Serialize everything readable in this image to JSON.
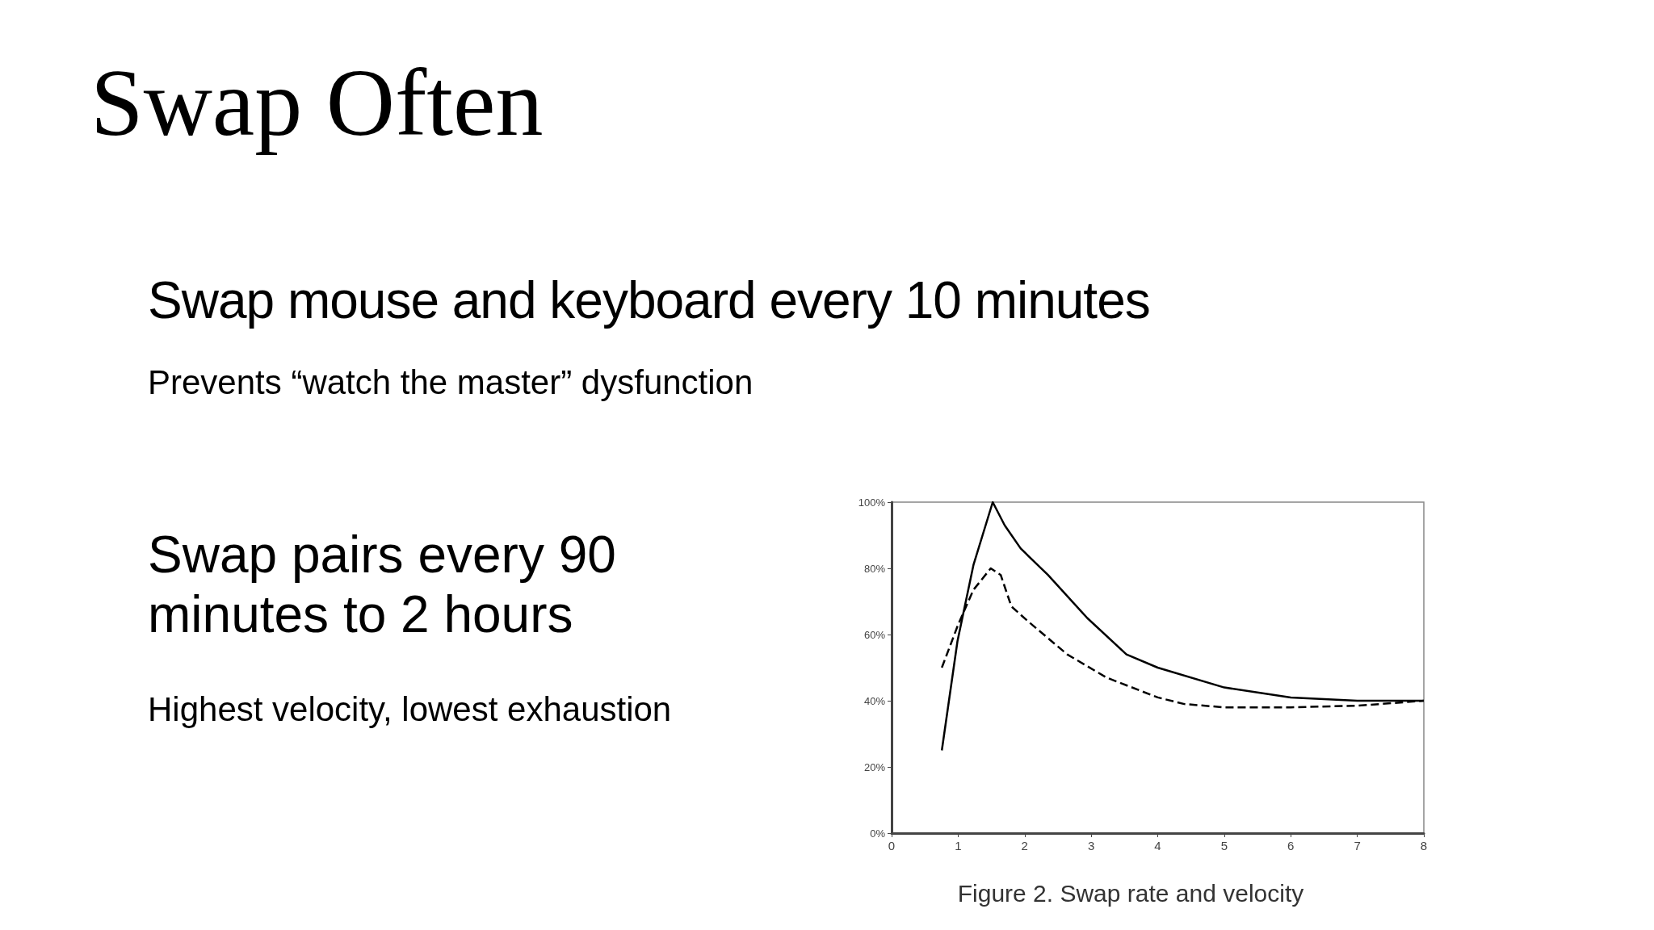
{
  "chart_data": {
    "type": "line",
    "title": "Swap Often",
    "annotations": [
      "Swap mouse and keyboard every 10 minutes",
      "Prevents “watch the master” dysfunction",
      "Swap pairs every 90 minutes to 2 hours",
      "Highest velocity, lowest exhaustion",
      "Figure 2. Swap rate and velocity"
    ],
    "series": [
      {
        "color": "#000000",
        "line_style": "solid",
        "x": [
          0.755,
          0.99,
          1.23,
          1.52,
          1.7,
          1.94,
          2.35,
          2.94,
          3.53,
          4.0,
          5.0,
          6.0,
          7.0,
          8.0
        ],
        "values": [
          25,
          58,
          81,
          100,
          93,
          86,
          78,
          65,
          54,
          50,
          44,
          41,
          40,
          40
        ]
      },
      {
        "color": "#000000",
        "line_style": "dashed",
        "x": [
          0.755,
          1.0,
          1.23,
          1.49,
          1.64,
          1.8,
          2.05,
          2.64,
          3.23,
          4.0,
          4.4,
          5.0,
          6.0,
          7.0,
          8.0
        ],
        "values": [
          50,
          63,
          73.5,
          80,
          78,
          68.5,
          64,
          54,
          47,
          41,
          39,
          38,
          38,
          38.5,
          40
        ]
      }
    ],
    "marker": "none",
    "xlim": [
      0,
      8
    ],
    "xticks": [
      0,
      1,
      2,
      3,
      4,
      5,
      6,
      7,
      8
    ],
    "ylim": [
      0,
      100
    ],
    "yticks": [
      {
        "value": 0,
        "label": "0%"
      },
      {
        "value": 20,
        "label": "20%"
      },
      {
        "value": 40,
        "label": "40%"
      },
      {
        "value": 60,
        "label": "60%"
      },
      {
        "value": 80,
        "label": "80%"
      },
      {
        "value": 100,
        "label": "100%"
      }
    ],
    "grid": false
  }
}
